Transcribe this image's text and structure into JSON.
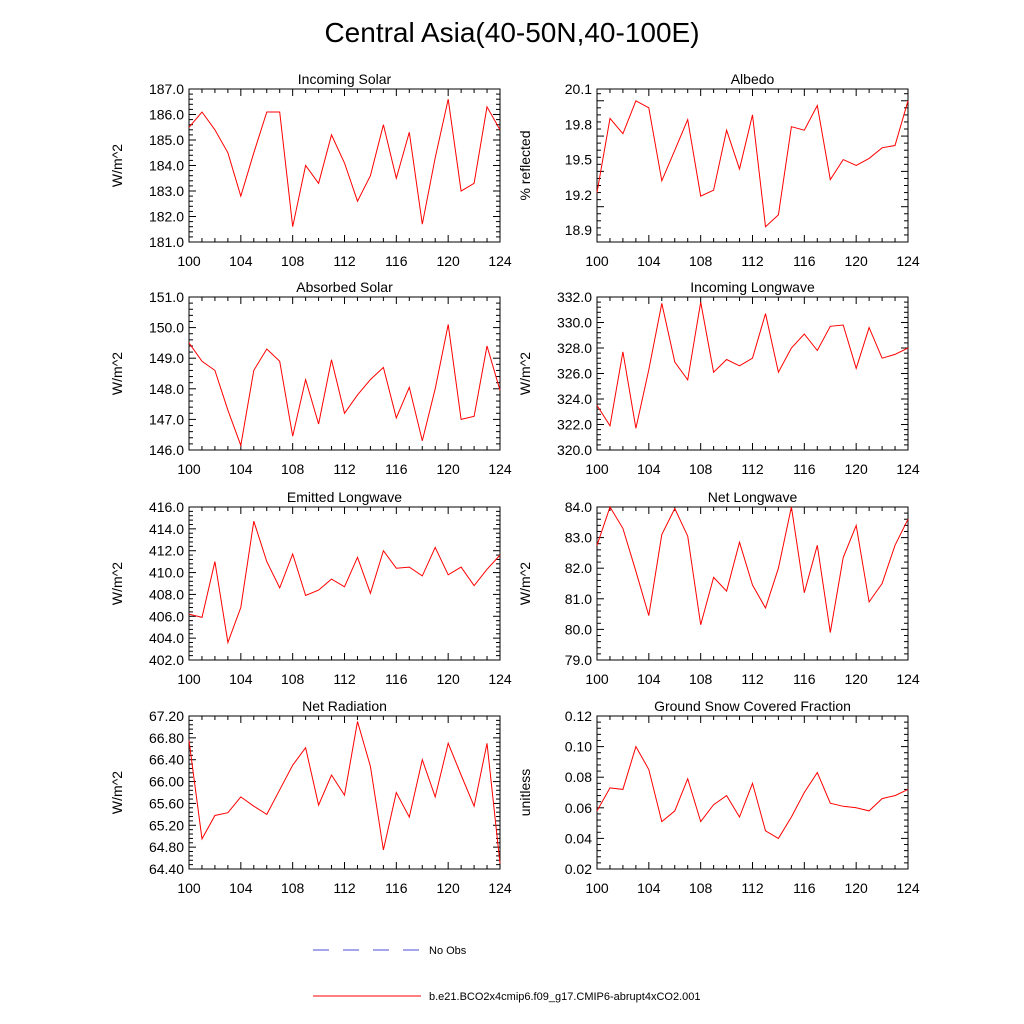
{
  "title": "Central Asia(40-50N,40-100E)",
  "colors": {
    "model": "#ff0000",
    "obs": "#4b4bdc",
    "axis": "#000000"
  },
  "legend": [
    {
      "label": "No Obs",
      "style": "dashed",
      "color": "#4b4bdc"
    },
    {
      "label": "b.e21.BCO2x4cmip6.f09_g17.CMIP6-abrupt4xCO2.001",
      "style": "solid",
      "color": "#ff0000"
    }
  ],
  "chart_data": [
    {
      "type": "line",
      "title": "Incoming Solar",
      "xlabel": "",
      "ylabel": "W/m^2",
      "xlim": [
        100,
        124
      ],
      "ylim": [
        181,
        187
      ],
      "xticks": [
        100,
        104,
        108,
        112,
        116,
        120,
        124
      ],
      "xtick_labels": [
        "100",
        "104",
        "108",
        "112",
        "116",
        "120",
        "124"
      ],
      "yticks": [
        181,
        182,
        183,
        184,
        185,
        186,
        187
      ],
      "ytick_labels": [
        "181.0",
        "182.0",
        "183.0",
        "184.0",
        "185.0",
        "186.0",
        "187.0"
      ],
      "x": [
        100,
        101,
        102,
        103,
        104,
        105,
        106,
        107,
        108,
        109,
        110,
        111,
        112,
        113,
        114,
        115,
        116,
        117,
        118,
        119,
        120,
        121,
        122,
        123,
        124
      ],
      "series": [
        {
          "name": "b.e21.BCO2x4cmip6.f09_g17.CMIP6-abrupt4xCO2.001",
          "values": [
            185.5,
            186.1,
            185.4,
            184.5,
            182.8,
            184.5,
            186.1,
            186.1,
            181.6,
            184.0,
            183.3,
            185.2,
            184.1,
            182.6,
            183.6,
            185.6,
            183.5,
            185.3,
            181.7,
            184.3,
            186.6,
            183.0,
            183.3,
            186.3,
            185.4
          ]
        }
      ]
    },
    {
      "type": "line",
      "title": "Albedo",
      "xlabel": "",
      "ylabel": "% reflected",
      "xlim": [
        100,
        124
      ],
      "ylim": [
        18.8,
        20.1
      ],
      "xticks": [
        100,
        104,
        108,
        112,
        116,
        120,
        124
      ],
      "xtick_labels": [
        "100",
        "104",
        "108",
        "112",
        "116",
        "120",
        "124"
      ],
      "yticks": [
        18.9,
        19.2,
        19.5,
        19.8,
        20.1
      ],
      "ytick_labels": [
        "18.9",
        "19.2",
        "19.5",
        "19.8",
        "20.1"
      ],
      "x": [
        100,
        101,
        102,
        103,
        104,
        105,
        106,
        107,
        108,
        109,
        110,
        111,
        112,
        113,
        114,
        115,
        116,
        117,
        118,
        119,
        120,
        121,
        122,
        123,
        124
      ],
      "series": [
        {
          "name": "b.e21.BCO2x4cmip6.f09_g17.CMIP6-abrupt4xCO2.001",
          "values": [
            19.22,
            19.85,
            19.72,
            20.0,
            19.94,
            19.32,
            19.58,
            19.84,
            19.19,
            19.24,
            19.75,
            19.42,
            19.88,
            18.93,
            19.03,
            19.78,
            19.75,
            19.96,
            19.33,
            19.5,
            19.45,
            19.51,
            19.6,
            19.62,
            20.0
          ]
        }
      ]
    },
    {
      "type": "line",
      "title": "Absorbed Solar",
      "xlabel": "",
      "ylabel": "W/m^2",
      "xlim": [
        100,
        124
      ],
      "ylim": [
        146,
        151
      ],
      "xticks": [
        100,
        104,
        108,
        112,
        116,
        120,
        124
      ],
      "xtick_labels": [
        "100",
        "104",
        "108",
        "112",
        "116",
        "120",
        "124"
      ],
      "yticks": [
        146,
        147,
        148,
        149,
        150,
        151
      ],
      "ytick_labels": [
        "146.0",
        "147.0",
        "148.0",
        "149.0",
        "150.0",
        "151.0"
      ],
      "x": [
        100,
        101,
        102,
        103,
        104,
        105,
        106,
        107,
        108,
        109,
        110,
        111,
        112,
        113,
        114,
        115,
        116,
        117,
        118,
        119,
        120,
        121,
        122,
        123,
        124
      ],
      "series": [
        {
          "name": "b.e21.BCO2x4cmip6.f09_g17.CMIP6-abrupt4xCO2.001",
          "values": [
            149.5,
            148.9,
            148.6,
            147.3,
            146.15,
            148.6,
            149.3,
            148.9,
            146.45,
            148.3,
            146.85,
            148.95,
            147.2,
            147.8,
            148.3,
            148.7,
            147.05,
            148.05,
            146.3,
            148.0,
            150.1,
            147.0,
            147.1,
            149.4,
            147.95
          ]
        }
      ]
    },
    {
      "type": "line",
      "title": "Incoming Longwave",
      "xlabel": "",
      "ylabel": "W/m^2",
      "xlim": [
        100,
        124
      ],
      "ylim": [
        320,
        332
      ],
      "xticks": [
        100,
        104,
        108,
        112,
        116,
        120,
        124
      ],
      "xtick_labels": [
        "100",
        "104",
        "108",
        "112",
        "116",
        "120",
        "124"
      ],
      "yticks": [
        320,
        322,
        324,
        326,
        328,
        330,
        332
      ],
      "ytick_labels": [
        "320.0",
        "322.0",
        "324.0",
        "326.0",
        "328.0",
        "330.0",
        "332.0"
      ],
      "x": [
        100,
        101,
        102,
        103,
        104,
        105,
        106,
        107,
        108,
        109,
        110,
        111,
        112,
        113,
        114,
        115,
        116,
        117,
        118,
        119,
        120,
        121,
        122,
        123,
        124
      ],
      "series": [
        {
          "name": "b.e21.BCO2x4cmip6.f09_g17.CMIP6-abrupt4xCO2.001",
          "values": [
            323.5,
            321.9,
            327.7,
            321.7,
            326.3,
            331.5,
            326.9,
            325.5,
            331.6,
            326.1,
            327.1,
            326.6,
            327.2,
            330.7,
            326.1,
            328.0,
            329.1,
            327.8,
            329.7,
            329.8,
            326.4,
            329.6,
            327.2,
            327.5,
            328.0
          ]
        }
      ]
    },
    {
      "type": "line",
      "title": "Emitted Longwave",
      "xlabel": "",
      "ylabel": "W/m^2",
      "xlim": [
        100,
        124
      ],
      "ylim": [
        402,
        416
      ],
      "xticks": [
        100,
        104,
        108,
        112,
        116,
        120,
        124
      ],
      "xtick_labels": [
        "100",
        "104",
        "108",
        "112",
        "116",
        "120",
        "124"
      ],
      "yticks": [
        402,
        404,
        406,
        408,
        410,
        412,
        414,
        416
      ],
      "ytick_labels": [
        "402.0",
        "404.0",
        "406.0",
        "408.0",
        "410.0",
        "412.0",
        "414.0",
        "416.0"
      ],
      "x": [
        100,
        101,
        102,
        103,
        104,
        105,
        106,
        107,
        108,
        109,
        110,
        111,
        112,
        113,
        114,
        115,
        116,
        117,
        118,
        119,
        120,
        121,
        122,
        123,
        124
      ],
      "series": [
        {
          "name": "b.e21.BCO2x4cmip6.f09_g17.CMIP6-abrupt4xCO2.001",
          "values": [
            406.2,
            405.9,
            411.0,
            403.6,
            406.8,
            414.7,
            411.0,
            408.6,
            411.7,
            407.9,
            408.4,
            409.4,
            408.7,
            411.4,
            408.1,
            412.0,
            410.4,
            410.5,
            409.7,
            412.3,
            409.8,
            410.5,
            408.8,
            410.3,
            411.6
          ]
        }
      ]
    },
    {
      "type": "line",
      "title": "Net Longwave",
      "xlabel": "",
      "ylabel": "W/m^2",
      "xlim": [
        100,
        124
      ],
      "ylim": [
        79,
        84
      ],
      "xticks": [
        100,
        104,
        108,
        112,
        116,
        120,
        124
      ],
      "xtick_labels": [
        "100",
        "104",
        "108",
        "112",
        "116",
        "120",
        "124"
      ],
      "yticks": [
        79,
        80,
        81,
        82,
        83,
        84
      ],
      "ytick_labels": [
        "79.0",
        "80.0",
        "81.0",
        "82.0",
        "83.0",
        "84.0"
      ],
      "x": [
        100,
        101,
        102,
        103,
        104,
        105,
        106,
        107,
        108,
        109,
        110,
        111,
        112,
        113,
        114,
        115,
        116,
        117,
        118,
        119,
        120,
        121,
        122,
        123,
        124
      ],
      "series": [
        {
          "name": "b.e21.BCO2x4cmip6.f09_g17.CMIP6-abrupt4xCO2.001",
          "values": [
            82.75,
            84.0,
            83.3,
            81.9,
            80.45,
            83.1,
            83.95,
            83.05,
            80.15,
            81.7,
            81.25,
            82.85,
            81.45,
            80.7,
            82.0,
            84.0,
            81.2,
            82.75,
            79.9,
            82.35,
            83.4,
            80.9,
            81.5,
            82.75,
            83.6
          ]
        }
      ]
    },
    {
      "type": "line",
      "title": "Net Radiation",
      "xlabel": "",
      "ylabel": "W/m^2",
      "xlim": [
        100,
        124
      ],
      "ylim": [
        64.4,
        67.2
      ],
      "xticks": [
        100,
        104,
        108,
        112,
        116,
        120,
        124
      ],
      "xtick_labels": [
        "100",
        "104",
        "108",
        "112",
        "116",
        "120",
        "124"
      ],
      "yticks": [
        64.4,
        64.8,
        65.2,
        65.6,
        66.0,
        66.4,
        66.8,
        67.2
      ],
      "ytick_labels": [
        "64.40",
        "64.80",
        "65.20",
        "65.60",
        "66.00",
        "66.40",
        "66.80",
        "67.20"
      ],
      "x": [
        100,
        101,
        102,
        103,
        104,
        105,
        106,
        107,
        108,
        109,
        110,
        111,
        112,
        113,
        114,
        115,
        116,
        117,
        118,
        119,
        120,
        121,
        122,
        123,
        124
      ],
      "series": [
        {
          "name": "b.e21.BCO2x4cmip6.f09_g17.CMIP6-abrupt4xCO2.001",
          "values": [
            66.75,
            64.95,
            65.38,
            65.43,
            65.72,
            65.55,
            65.4,
            65.85,
            66.3,
            66.62,
            65.57,
            66.12,
            65.75,
            67.1,
            66.28,
            64.75,
            65.8,
            65.35,
            66.4,
            65.72,
            66.7,
            66.12,
            65.55,
            66.7,
            64.5
          ]
        }
      ]
    },
    {
      "type": "line",
      "title": "Ground Snow Covered Fraction",
      "xlabel": "",
      "ylabel": "unitless",
      "xlim": [
        100,
        124
      ],
      "ylim": [
        0.02,
        0.12
      ],
      "xticks": [
        100,
        104,
        108,
        112,
        116,
        120,
        124
      ],
      "xtick_labels": [
        "100",
        "104",
        "108",
        "112",
        "116",
        "120",
        "124"
      ],
      "yticks": [
        0.02,
        0.04,
        0.06,
        0.08,
        0.1,
        0.12
      ],
      "ytick_labels": [
        "0.02",
        "0.04",
        "0.06",
        "0.08",
        "0.10",
        "0.12"
      ],
      "x": [
        100,
        101,
        102,
        103,
        104,
        105,
        106,
        107,
        108,
        109,
        110,
        111,
        112,
        113,
        114,
        115,
        116,
        117,
        118,
        119,
        120,
        121,
        122,
        123,
        124
      ],
      "series": [
        {
          "name": "b.e21.BCO2x4cmip6.f09_g17.CMIP6-abrupt4xCO2.001",
          "values": [
            0.058,
            0.073,
            0.072,
            0.1,
            0.085,
            0.051,
            0.058,
            0.079,
            0.051,
            0.062,
            0.068,
            0.054,
            0.076,
            0.045,
            0.04,
            0.054,
            0.07,
            0.083,
            0.063,
            0.061,
            0.06,
            0.058,
            0.066,
            0.068,
            0.072
          ]
        }
      ]
    }
  ]
}
